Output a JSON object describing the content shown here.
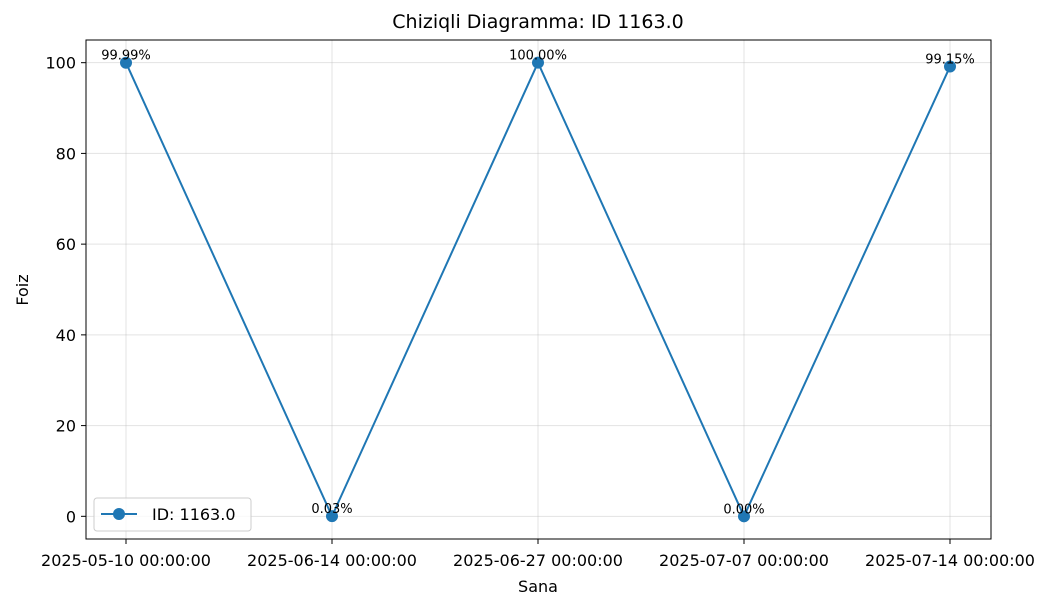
{
  "chart_data": {
    "type": "line",
    "title": "Chiziqli Diagramma: ID 1163.0",
    "xlabel": "Sana",
    "ylabel": "Foiz",
    "categories": [
      "2025-05-10 00:00:00",
      "2025-06-14 00:00:00",
      "2025-06-27 00:00:00",
      "2025-07-07 00:00:00",
      "2025-07-14 00:00:00"
    ],
    "series": [
      {
        "name": "ID: 1163.0",
        "values": [
          99.99,
          0.03,
          100.0,
          0.0,
          99.15
        ],
        "labels": [
          "99.99%",
          "0.03%",
          "100.00%",
          "0.00%",
          "99.15%"
        ],
        "color": "#1f77b4",
        "marker": "circle"
      }
    ],
    "yticks": [
      0,
      20,
      40,
      60,
      80,
      100
    ],
    "ylim": [
      -5,
      105
    ],
    "grid": true,
    "legend_position": "lower-left"
  }
}
